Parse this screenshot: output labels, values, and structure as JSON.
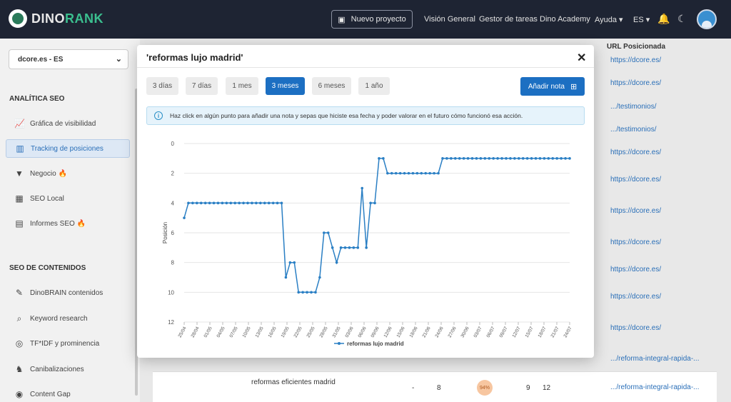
{
  "nav": {
    "logo_a": "DINO",
    "logo_b": "RANK",
    "new_project": "Nuevo proyecto",
    "links": [
      "Visión General",
      "Gestor de tareas",
      "Dino Academy",
      "Ayuda ▾",
      "ES ▾"
    ]
  },
  "sidebar": {
    "site": "dcore.es - ES",
    "section1": "ANALÍTICA SEO",
    "items1": [
      {
        "label": "Gráfica de visibilidad",
        "icon": "chart-icon"
      },
      {
        "label": "Tracking de posiciones",
        "icon": "bar-chart-icon"
      },
      {
        "label": "Negocio 🔥",
        "icon": "funnel-icon"
      },
      {
        "label": "SEO Local",
        "icon": "store-icon"
      },
      {
        "label": "Informes SEO 🔥",
        "icon": "pdf-icon"
      }
    ],
    "section2": "SEO DE CONTENIDOS",
    "items2": [
      {
        "label": "DinoBRAIN contenidos",
        "icon": "pen-icon"
      },
      {
        "label": "Keyword research",
        "icon": "search-icon"
      },
      {
        "label": "TF*IDF y prominencia",
        "icon": "target-icon"
      },
      {
        "label": "Canibalizaciones",
        "icon": "dino-icon"
      },
      {
        "label": "Content Gap",
        "icon": "eye-icon"
      }
    ]
  },
  "background": {
    "url_header": "URL Posicionada",
    "urls": [
      "https://dcore.es/",
      ".../testimonios/",
      ".../testimonios/",
      "https://dcore.es/",
      "https://dcore.es/",
      "https://dcore.es/",
      "https://dcore.es/",
      "https://dcore.es/",
      "https://dcore.es/",
      "https://dcore.es/",
      ".../reforma-integral-rapida-...",
      ".../reforma-integral-rapida-..."
    ],
    "row_keyword": "reformas eficientes madrid",
    "row_dash": "-",
    "row_pos": "8",
    "row_pct": "94%",
    "row_n1": "9",
    "row_n2": "12"
  },
  "modal": {
    "title": "'reformas lujo madrid'",
    "close": "✕",
    "ranges": [
      {
        "label": "3 días",
        "active": false
      },
      {
        "label": "7 días",
        "active": false
      },
      {
        "label": "1 mes",
        "active": false
      },
      {
        "label": "3 meses",
        "active": true
      },
      {
        "label": "6 meses",
        "active": false
      },
      {
        "label": "1 año",
        "active": false
      }
    ],
    "add_note": "Añadir nota",
    "info": "Haz click en algún punto para añadir una nota y sepas que hiciste esa fecha y poder valorar en el futuro cómo funcionó esa acción."
  },
  "chart_data": {
    "type": "line",
    "ylabel": "Posición",
    "ylim": [
      0,
      12
    ],
    "y_inverted": true,
    "yticks": [
      0,
      2,
      4,
      6,
      8,
      10,
      12
    ],
    "grid": true,
    "legend_position": "bottom",
    "series_color": "#2a7fc4",
    "xtick_labels": [
      "25/04",
      "28/04",
      "01/05",
      "04/05",
      "07/05",
      "10/05",
      "13/05",
      "16/05",
      "19/05",
      "22/05",
      "25/05",
      "28/05",
      "31/05",
      "03/06",
      "06/06",
      "09/06",
      "12/06",
      "15/06",
      "18/06",
      "21/06",
      "24/06",
      "27/06",
      "30/06",
      "03/07",
      "06/07",
      "09/07",
      "12/07",
      "15/07",
      "18/07",
      "21/07",
      "24/07"
    ],
    "series": [
      {
        "name": "reformas lujo madrid",
        "values": [
          5,
          4,
          4,
          4,
          4,
          4,
          4,
          4,
          4,
          4,
          4,
          4,
          4,
          4,
          4,
          4,
          4,
          4,
          4,
          4,
          4,
          4,
          4,
          4,
          9,
          8,
          8,
          10,
          10,
          10,
          10,
          10,
          9,
          6,
          6,
          7,
          8,
          7,
          7,
          7,
          7,
          7,
          3,
          7,
          4,
          4,
          1,
          1,
          2,
          2,
          2,
          2,
          2,
          2,
          2,
          2,
          2,
          2,
          2,
          2,
          2,
          1,
          1,
          1,
          1,
          1,
          1,
          1,
          1,
          1,
          1,
          1,
          1,
          1,
          1,
          1,
          1,
          1,
          1,
          1,
          1,
          1,
          1,
          1,
          1,
          1,
          1,
          1,
          1,
          1,
          1,
          1
        ]
      }
    ]
  }
}
